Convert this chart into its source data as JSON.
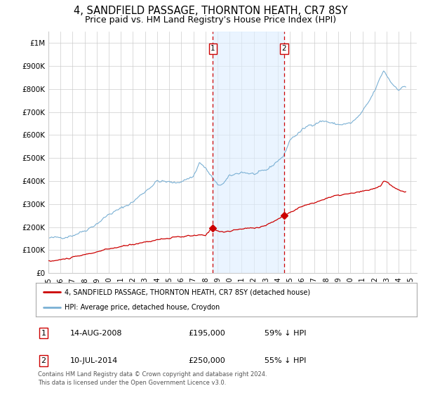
{
  "title": "4, SANDFIELD PASSAGE, THORNTON HEATH, CR7 8SY",
  "subtitle": "Price paid vs. HM Land Registry's House Price Index (HPI)",
  "title_fontsize": 10.5,
  "subtitle_fontsize": 9,
  "xlim": [
    1995.0,
    2025.5
  ],
  "ylim": [
    0,
    1050000
  ],
  "yticks": [
    0,
    100000,
    200000,
    300000,
    400000,
    500000,
    600000,
    700000,
    800000,
    900000,
    1000000
  ],
  "ytick_labels": [
    "£0",
    "£100K",
    "£200K",
    "£300K",
    "£400K",
    "£500K",
    "£600K",
    "£700K",
    "£800K",
    "£900K",
    "£1M"
  ],
  "xticks": [
    1995,
    1996,
    1997,
    1998,
    1999,
    2000,
    2001,
    2002,
    2003,
    2004,
    2005,
    2006,
    2007,
    2008,
    2009,
    2010,
    2011,
    2012,
    2013,
    2014,
    2015,
    2016,
    2017,
    2018,
    2019,
    2020,
    2021,
    2022,
    2023,
    2024,
    2025
  ],
  "hpi_color": "#7ab0d4",
  "price_color": "#cc0000",
  "vline_color": "#cc0000",
  "shade_color": "#ddeeff",
  "sale1_year": 2008.62,
  "sale1_price": 195000,
  "sale2_year": 2014.52,
  "sale2_price": 250000,
  "legend_label_red": "4, SANDFIELD PASSAGE, THORNTON HEATH, CR7 8SY (detached house)",
  "legend_label_blue": "HPI: Average price, detached house, Croydon",
  "annotation1_num": "1",
  "annotation1_date": "14-AUG-2008",
  "annotation1_price": "£195,000",
  "annotation1_hpi": "59% ↓ HPI",
  "annotation2_num": "2",
  "annotation2_date": "10-JUL-2014",
  "annotation2_price": "£250,000",
  "annotation2_hpi": "55% ↓ HPI",
  "footer": "Contains HM Land Registry data © Crown copyright and database right 2024.\nThis data is licensed under the Open Government Licence v3.0.",
  "bg_color": "#ffffff",
  "grid_color": "#cccccc"
}
